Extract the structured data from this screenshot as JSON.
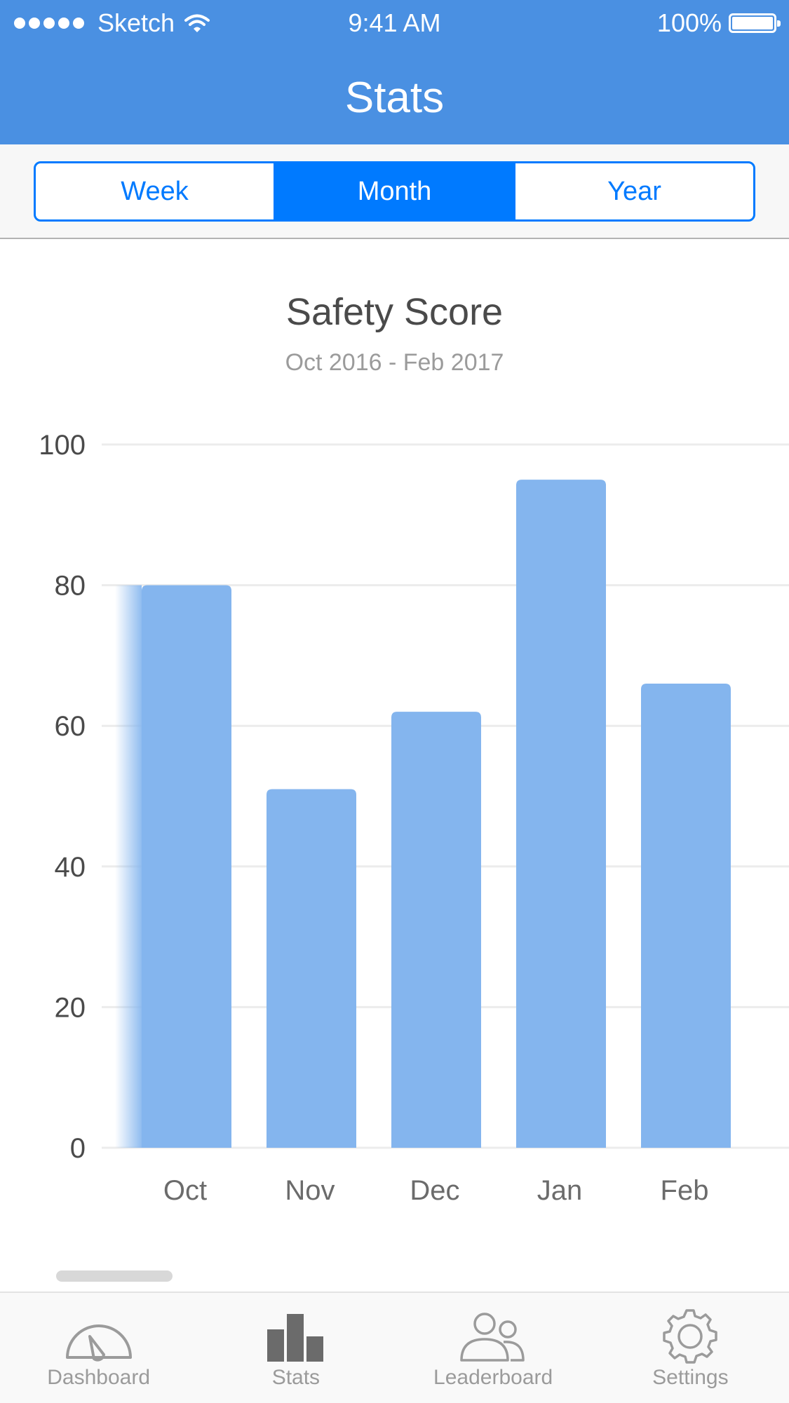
{
  "status_bar": {
    "carrier": "Sketch",
    "time": "9:41 AM",
    "battery": "100%"
  },
  "nav": {
    "title": "Stats"
  },
  "segments": [
    {
      "label": "Week",
      "active": false
    },
    {
      "label": "Month",
      "active": true
    },
    {
      "label": "Year",
      "active": false
    }
  ],
  "tabs": [
    {
      "label": "Dashboard",
      "icon": "gauge-icon"
    },
    {
      "label": "Stats",
      "icon": "bar-chart-icon"
    },
    {
      "label": "Leaderboard",
      "icon": "users-icon"
    },
    {
      "label": "Settings",
      "icon": "gear-icon"
    }
  ],
  "colors": {
    "header": "#4a90e2",
    "accent": "#007aff",
    "bar": "#84b5ee"
  },
  "chart_data": {
    "type": "bar",
    "title": "Safety Score",
    "subtitle": "Oct 2016 - Feb 2017",
    "categories": [
      "Oct",
      "Nov",
      "Dec",
      "Jan",
      "Feb"
    ],
    "values": [
      80,
      51,
      62,
      95,
      66
    ],
    "ylim": [
      0,
      100
    ],
    "yticks": [
      0,
      20,
      40,
      60,
      80,
      100
    ],
    "grid": true
  }
}
